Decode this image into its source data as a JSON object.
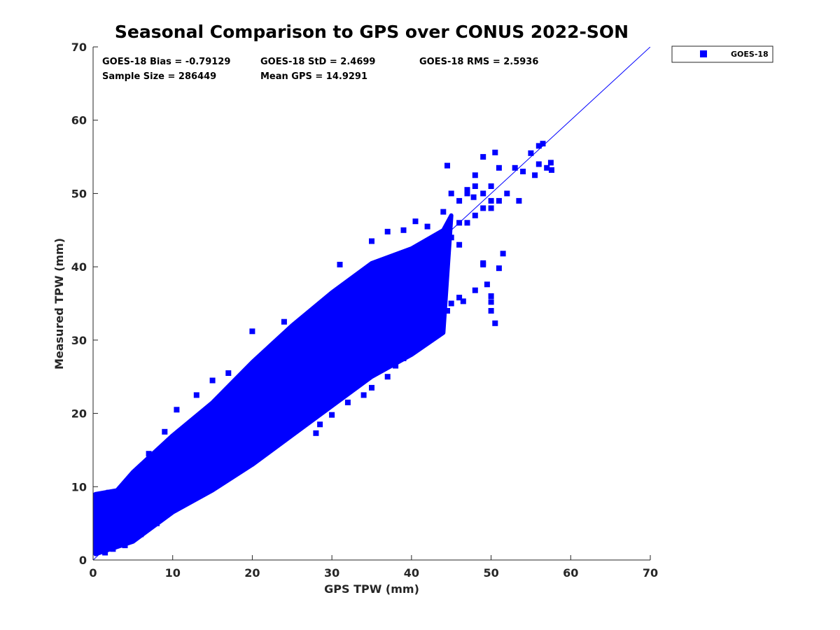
{
  "chart_data": {
    "type": "scatter",
    "title": "Seasonal Comparison to GPS over CONUS 2022-SON",
    "xlabel": "GPS TPW (mm)",
    "ylabel": "Measured TPW (mm)",
    "xlim": [
      0,
      70
    ],
    "ylim": [
      0,
      70
    ],
    "xticks": [
      "0",
      "10",
      "20",
      "30",
      "40",
      "50",
      "60",
      "70"
    ],
    "yticks": [
      "0",
      "10",
      "20",
      "30",
      "40",
      "50",
      "60",
      "70"
    ],
    "legend": {
      "entries": [
        "GOES-18"
      ],
      "placement": "top-right, outside axes"
    },
    "reference_line": {
      "name": "1:1 line",
      "from": [
        0,
        0
      ],
      "to": [
        70,
        70
      ],
      "color": "#0000ff"
    },
    "stats": {
      "bias": "GOES-18 Bias = -0.79129",
      "std": "GOES-18 StD = 2.4699",
      "rms": "GOES-18 RMS = 2.5936",
      "sample_size": "Sample Size = 286449",
      "mean_gps": "Mean GPS = 14.9291"
    },
    "series": [
      {
        "name": "GOES-18",
        "color": "#0000ff",
        "marker": "square",
        "dense_envelope_lower": [
          [
            0.3,
            0.8
          ],
          [
            5,
            2.5
          ],
          [
            10,
            6.5
          ],
          [
            15,
            9.5
          ],
          [
            20,
            13
          ],
          [
            25,
            17
          ],
          [
            30,
            21
          ],
          [
            35,
            25
          ],
          [
            40,
            28
          ],
          [
            44,
            31
          ]
        ],
        "dense_envelope_upper": [
          [
            0.3,
            9
          ],
          [
            3,
            9.5
          ],
          [
            5,
            12
          ],
          [
            10,
            17
          ],
          [
            15,
            21.5
          ],
          [
            20,
            27
          ],
          [
            25,
            32
          ],
          [
            30,
            36.5
          ],
          [
            35,
            40.5
          ],
          [
            40,
            42.5
          ],
          [
            44,
            45
          ],
          [
            45,
            47
          ]
        ],
        "sparse_cluster_points": [
          [
            46,
            49
          ],
          [
            47,
            50
          ],
          [
            48,
            47
          ],
          [
            49,
            48
          ],
          [
            50,
            49
          ],
          [
            47,
            46
          ],
          [
            48,
            51
          ],
          [
            45,
            44
          ],
          [
            46,
            46
          ],
          [
            49,
            50
          ],
          [
            51,
            49
          ],
          [
            52,
            50
          ],
          [
            50,
            48
          ],
          [
            46,
            43
          ]
        ],
        "outliers": [
          [
            0.5,
            5.6
          ],
          [
            0.3,
            8.8
          ],
          [
            2,
            9.2
          ],
          [
            4,
            9.2
          ],
          [
            5,
            11.5
          ],
          [
            7,
            14.5
          ],
          [
            9,
            17.5
          ],
          [
            10.5,
            20.5
          ],
          [
            13,
            22.5
          ],
          [
            15,
            24.5
          ],
          [
            17,
            25.5
          ],
          [
            20,
            31.2
          ],
          [
            24,
            32.5
          ],
          [
            29,
            34.5
          ],
          [
            31,
            40.3
          ],
          [
            35,
            43.5
          ],
          [
            37,
            44.8
          ],
          [
            39,
            45
          ],
          [
            40.5,
            46.2
          ],
          [
            42,
            45.5
          ],
          [
            44,
            47.5
          ],
          [
            45,
            50
          ],
          [
            47,
            50.5
          ],
          [
            47.8,
            49.5
          ],
          [
            50,
            51
          ],
          [
            53.5,
            49
          ],
          [
            54,
            53
          ],
          [
            57,
            53.5
          ],
          [
            57.6,
            53.2
          ],
          [
            56.5,
            56.8
          ],
          [
            56,
            56.5
          ],
          [
            55,
            55.5
          ],
          [
            53,
            53.5
          ],
          [
            55.5,
            52.5
          ],
          [
            56,
            54
          ],
          [
            57.5,
            54.2
          ],
          [
            44.5,
            53.8
          ],
          [
            50.5,
            55.6
          ],
          [
            49,
            55
          ],
          [
            51,
            53.5
          ],
          [
            48,
            52.5
          ],
          [
            50.5,
            32.3
          ],
          [
            50,
            34
          ],
          [
            50,
            35.2
          ],
          [
            49,
            40.5
          ],
          [
            51,
            39.8
          ],
          [
            51.5,
            41.8
          ],
          [
            49.5,
            37.6
          ],
          [
            50,
            36
          ],
          [
            48,
            36.8
          ],
          [
            49,
            40.3
          ],
          [
            46.5,
            35.3
          ],
          [
            46,
            35.8
          ],
          [
            45,
            35
          ],
          [
            44.5,
            34
          ],
          [
            44,
            33
          ],
          [
            42,
            30.5
          ],
          [
            43,
            31.5
          ],
          [
            41,
            29.5
          ],
          [
            39,
            27.5
          ],
          [
            38,
            26.5
          ],
          [
            37,
            25
          ],
          [
            35,
            23.5
          ],
          [
            34,
            22.5
          ],
          [
            32,
            21.5
          ],
          [
            30,
            19.8
          ],
          [
            28.5,
            18.5
          ],
          [
            28,
            17.3
          ],
          [
            27,
            19
          ],
          [
            25.5,
            19
          ],
          [
            25,
            21.2
          ],
          [
            23.5,
            18.5
          ],
          [
            24,
            16.5
          ],
          [
            22,
            16
          ],
          [
            20,
            15
          ],
          [
            19,
            14
          ],
          [
            16,
            12.5
          ],
          [
            15,
            11
          ],
          [
            12,
            8.5
          ],
          [
            10,
            7
          ],
          [
            8,
            5
          ],
          [
            6,
            3.5
          ],
          [
            4,
            2
          ],
          [
            2.5,
            1.5
          ],
          [
            1.5,
            1
          ]
        ]
      }
    ]
  }
}
